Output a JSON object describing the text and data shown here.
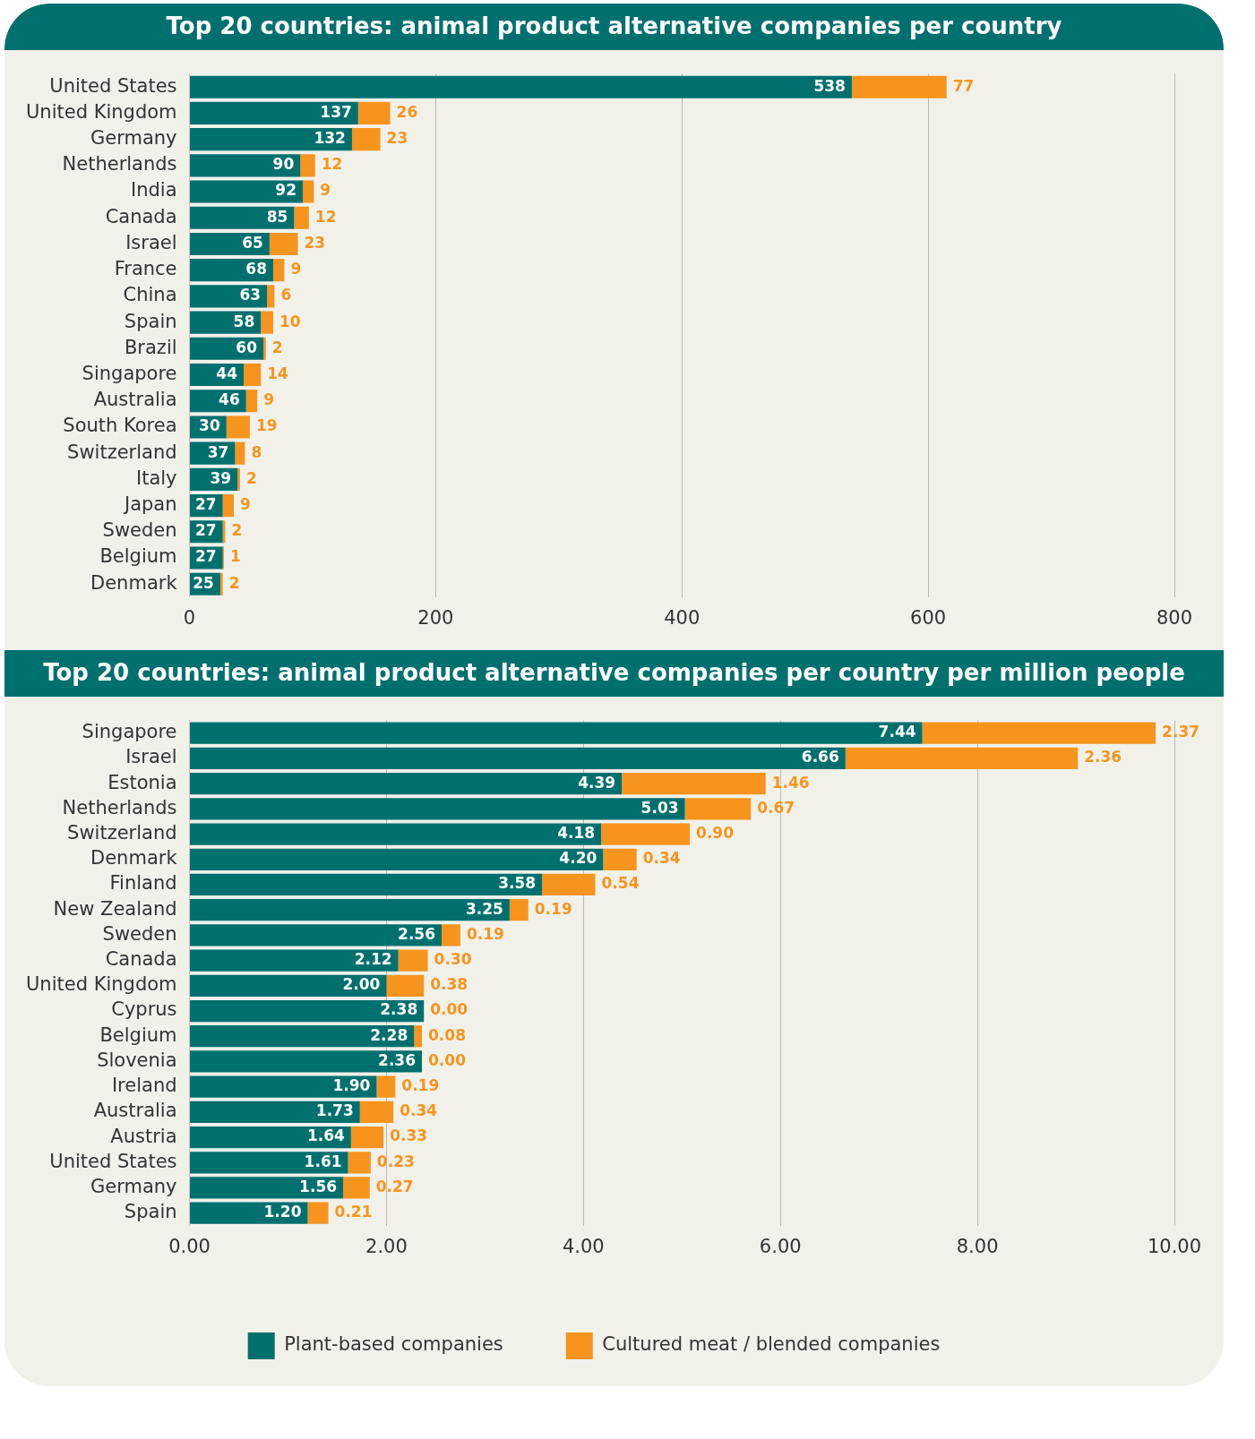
{
  "chart_data": [
    {
      "type": "bar",
      "title": "Top 20 countries: animal product alternative companies per country",
      "orientation": "horizontal",
      "stacked": true,
      "data_labels": true,
      "grid": "x",
      "legend": false,
      "categories": [
        "United States",
        "United Kingdom",
        "Germany",
        "Netherlands",
        "India",
        "Canada",
        "Israel",
        "France",
        "China",
        "Spain",
        "Brazil",
        "Singapore",
        "Australia",
        "South Korea",
        "Switzerland",
        "Italy",
        "Japan",
        "Sweden",
        "Belgium",
        "Denmark"
      ],
      "series": [
        {
          "color": "#00706f",
          "values": [
            538,
            137,
            132,
            90,
            92,
            85,
            65,
            68,
            63,
            58,
            60,
            44,
            46,
            30,
            37,
            39,
            27,
            27,
            27,
            25
          ]
        },
        {
          "color": "#f7941d",
          "values": [
            77,
            26,
            23,
            12,
            9,
            12,
            23,
            9,
            6,
            10,
            2,
            14,
            9,
            19,
            8,
            2,
            9,
            2,
            1,
            2
          ]
        }
      ],
      "xlim": [
        0,
        800
      ],
      "xticks": [
        0,
        200,
        400,
        600,
        800
      ]
    },
    {
      "type": "bar",
      "title": "Top 20 countries: animal product alternative companies per country per million people",
      "orientation": "horizontal",
      "stacked": true,
      "grid": "x",
      "legend": "bottom",
      "categories": [
        "Singapore",
        "Israel",
        "Estonia",
        "Netherlands",
        "Switzerland",
        "Denmark",
        "Finland",
        "New Zealand",
        "Sweden",
        "Canada",
        "United Kingdom",
        "Cyprus",
        "Belgium",
        "Slovenia",
        "Ireland",
        "Australia",
        "Austria",
        "United States",
        "Germany",
        "Spain"
      ],
      "series": [
        {
          "name": "Plant-based companies",
          "color": "#00706f",
          "values": [
            7.44,
            6.66,
            4.39,
            5.03,
            4.18,
            4.2,
            3.58,
            3.25,
            2.56,
            2.12,
            2.0,
            2.38,
            2.28,
            2.36,
            1.9,
            1.73,
            1.64,
            1.61,
            1.56,
            1.2
          ],
          "value_labels": [
            "7.44",
            "6.66",
            "4.39",
            "5.03",
            "4.18",
            "4.20",
            "3.58",
            "3.25",
            "2.56",
            "2.12",
            "2.00",
            "2.38",
            "2.28",
            "2.36",
            "1.90",
            "1.73",
            "1.64",
            "1.61",
            "1.56",
            "1.20"
          ]
        },
        {
          "name": "Cultured meat / blended companies",
          "color": "#f7941d",
          "values": [
            2.37,
            2.36,
            1.46,
            0.67,
            0.9,
            0.34,
            0.54,
            0.19,
            0.19,
            0.3,
            0.38,
            0.0,
            0.08,
            0.0,
            0.19,
            0.34,
            0.33,
            0.23,
            0.27,
            0.21
          ],
          "value_labels": [
            "2.37",
            "2.36",
            "1.46",
            "0.67",
            "0.90",
            "0.34",
            "0.54",
            "0.19",
            "0.19",
            "0.30",
            "0.38",
            "0.00",
            "0.08",
            "0.00",
            "0.19",
            "0.34",
            "0.33",
            "0.23",
            "0.27",
            "0.21"
          ]
        }
      ],
      "xlim": [
        0,
        10
      ],
      "xticks": [
        {
          "value": 0,
          "label": "0.00"
        },
        {
          "value": 2,
          "label": "2.00"
        },
        {
          "value": 4,
          "label": "4.00"
        },
        {
          "value": 6,
          "label": "6.00"
        },
        {
          "value": 8,
          "label": "8.00"
        },
        {
          "value": 10,
          "label": "10.00"
        }
      ]
    }
  ]
}
